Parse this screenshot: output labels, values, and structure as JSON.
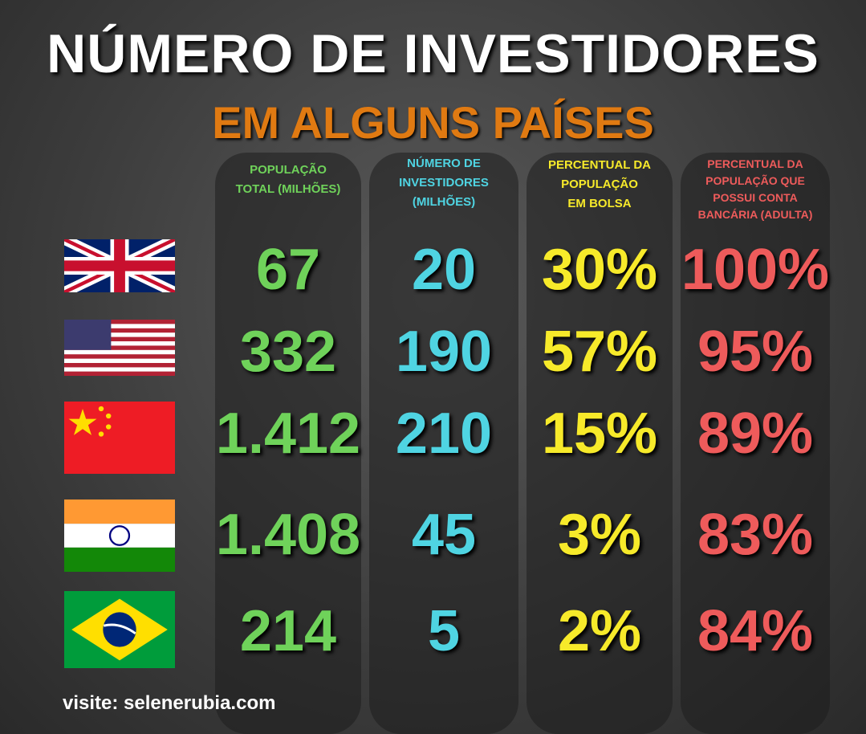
{
  "header": {
    "title": "NÚMERO DE INVESTIDORES",
    "subtitle": "EM ALGUNS PAÍSES"
  },
  "table": {
    "columns": [
      [
        "POPULAÇÃO",
        "TOTAL (MILHÕES)"
      ],
      [
        "NÚMERO DE",
        "INVESTIDORES",
        "(MILHÕES)"
      ],
      [
        "PERCENTUAL DA",
        "POPULAÇÃO",
        "EM BOLSA"
      ],
      [
        "PERCENTUAL DA",
        "POPULAÇÃO QUE",
        "POSSUI CONTA",
        "BANCÁRIA (ADULTA)"
      ]
    ],
    "rows": [
      [
        "67",
        "20",
        "30%",
        "100%"
      ],
      [
        "332",
        "190",
        "57%",
        "95%"
      ],
      [
        "1.412",
        "210",
        "15%",
        "89%"
      ],
      [
        "1.408",
        "45",
        "3%",
        "83%"
      ],
      [
        "214",
        "5",
        "2%",
        "84%"
      ]
    ]
  },
  "footer": "visite: selenerubia.com"
}
